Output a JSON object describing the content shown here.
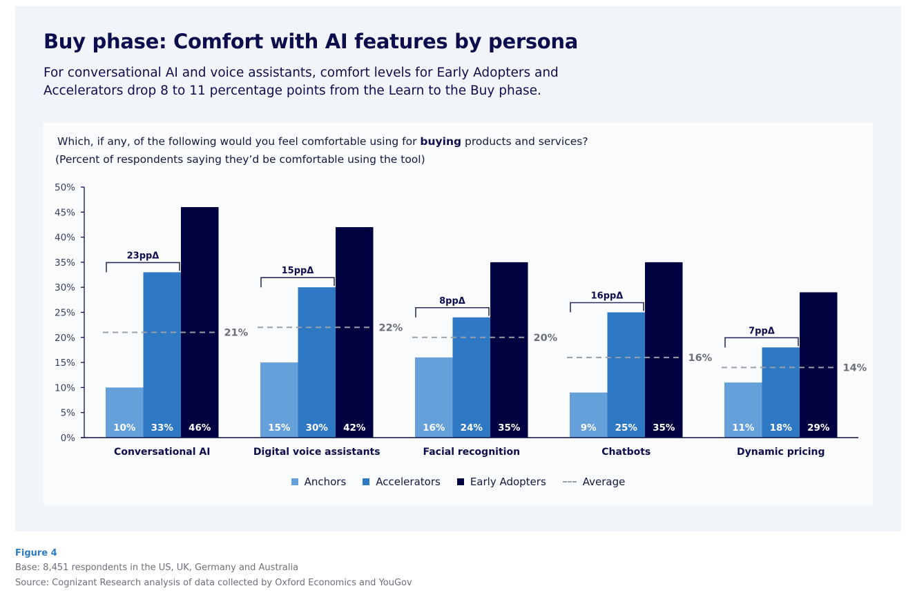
{
  "header": {
    "title": "Buy phase: Comfort with AI features by persona",
    "subtitle": "For conversational AI and voice assistants, comfort levels for Early Adopters and Accelerators drop 8 to 11 percentage points from the Learn to the Buy phase."
  },
  "question": {
    "prefix": "Which, if any, of the following would you feel comfortable using for ",
    "bold": "buying",
    "suffix": " products and services?",
    "note": "(Percent of respondents saying they’d be comfortable using the tool)"
  },
  "footer": {
    "figure": "Figure 4",
    "base": "Base: 8,451 respondents in the US, UK, Germany and Australia",
    "source": "Source: Cognizant Research analysis of data collected by Oxford Economics and YouGov"
  },
  "colors": {
    "anchors": "#66a0db",
    "accelerators": "#2e78c4",
    "early_adopters": "#010240",
    "average": "#9aa0a8",
    "text_dark": "#0b0d4d"
  },
  "chart_data": {
    "type": "bar",
    "title": "Buy phase: Comfort with AI features by persona",
    "xlabel": "",
    "ylabel": "",
    "ylim": [
      0,
      50
    ],
    "yticks": [
      0,
      5,
      10,
      15,
      20,
      25,
      30,
      35,
      40,
      45,
      50
    ],
    "ytick_labels": [
      "0%",
      "5%",
      "10%",
      "15%",
      "20%",
      "25%",
      "30%",
      "35%",
      "40%",
      "45%",
      "50%"
    ],
    "categories": [
      "Conversational AI",
      "Digital voice assistants",
      "Facial recognition",
      "Chatbots",
      "Dynamic pricing"
    ],
    "series": [
      {
        "name": "Anchors",
        "color_key": "anchors",
        "values": [
          10,
          15,
          16,
          9,
          11
        ],
        "labels": [
          "10%",
          "15%",
          "16%",
          "9%",
          "11%"
        ]
      },
      {
        "name": "Accelerators",
        "color_key": "accelerators",
        "values": [
          33,
          30,
          24,
          25,
          18
        ],
        "labels": [
          "33%",
          "30%",
          "24%",
          "25%",
          "18%"
        ]
      },
      {
        "name": "Early Adopters",
        "color_key": "early_adopters",
        "values": [
          46,
          42,
          35,
          35,
          29
        ],
        "labels": [
          "46%",
          "42%",
          "35%",
          "35%",
          "29%"
        ]
      }
    ],
    "average": {
      "name": "Average",
      "values": [
        21,
        22,
        20,
        16,
        14
      ],
      "labels": [
        "21%",
        "22%",
        "20%",
        "16%",
        "14%"
      ]
    },
    "deltas": {
      "values": [
        23,
        15,
        8,
        16,
        7
      ],
      "labels": [
        "23ppΔ",
        "15ppΔ",
        "8ppΔ",
        "16ppΔ",
        "7ppΔ"
      ]
    },
    "legend": [
      "Anchors",
      "Accelerators",
      "Early Adopters",
      "Average"
    ],
    "legend_position": "bottom",
    "grid": false
  }
}
